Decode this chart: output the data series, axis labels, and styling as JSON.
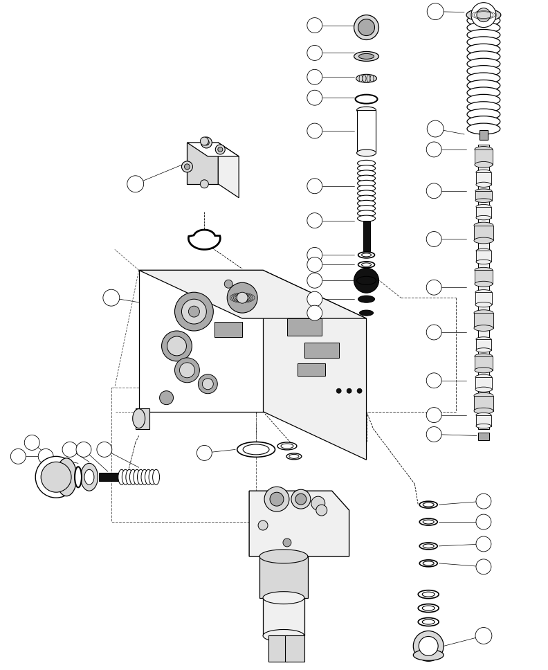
{
  "bg_color": "#ffffff",
  "lc": "#000000",
  "figsize": [
    7.92,
    9.68
  ],
  "dpi": 100,
  "lw_thin": 0.5,
  "lw_med": 0.8,
  "lw_thick": 1.0,
  "fill_white": "#ffffff",
  "fill_light": "#f0f0f0",
  "fill_mid": "#d8d8d8",
  "fill_dark": "#aaaaaa",
  "fill_black": "#111111"
}
